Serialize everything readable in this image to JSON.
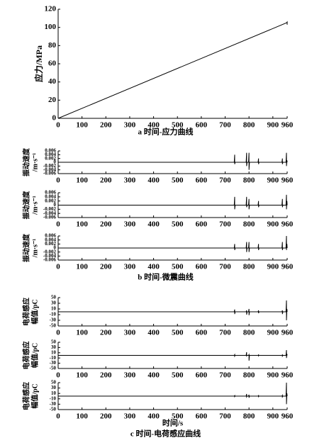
{
  "chart_data": [
    {
      "type": "line",
      "ylabel": [
        "应力/MPa"
      ],
      "caption": "a 时间-应力曲线",
      "x": [
        0,
        957,
        960,
        960
      ],
      "values": [
        0,
        105,
        106,
        103
      ],
      "color": "#000000",
      "xlim": [
        0,
        960
      ],
      "xticks": [
        0,
        100,
        200,
        300,
        400,
        500,
        600,
        700,
        800,
        900,
        960
      ],
      "ylim": [
        0,
        120
      ],
      "yticks": [
        0,
        20,
        40,
        60,
        80,
        100,
        120
      ]
    },
    {
      "type": "line",
      "ylabel": [
        "振动速度",
        "/m·s⁻¹"
      ],
      "x": [
        0,
        100,
        200,
        300,
        400,
        500,
        600,
        700,
        738,
        740,
        740,
        742,
        788,
        790,
        790,
        792,
        798,
        800,
        800,
        802,
        838,
        840,
        840,
        842,
        938,
        940,
        940,
        942,
        955,
        957,
        957,
        959,
        960
      ],
      "values": [
        0,
        0,
        0,
        0,
        0,
        0,
        0,
        0,
        0,
        0.004,
        -0.001,
        0,
        0,
        0.005,
        -0.002,
        0,
        0,
        0.005,
        -0.004,
        0,
        0,
        0.002,
        -0.001,
        0,
        0,
        0.002,
        -0.001,
        0,
        0,
        0.005,
        -0.002,
        0.001,
        0
      ],
      "color": "#000000",
      "xlim": [
        0,
        960
      ],
      "xticks": [
        0,
        100,
        200,
        300,
        400,
        500,
        600,
        700,
        800,
        900,
        960
      ],
      "ylim": [
        -0.006,
        0.006
      ],
      "yticks": [
        -0.006,
        -0.004,
        -0.002,
        0,
        0.002,
        0.004,
        0.006
      ]
    },
    {
      "type": "line",
      "ylabel": [
        "振动速度",
        "/m·s⁻¹"
      ],
      "x": [
        0,
        100,
        200,
        300,
        400,
        500,
        600,
        700,
        738,
        740,
        740,
        742,
        788,
        790,
        790,
        792,
        798,
        800,
        800,
        802,
        838,
        840,
        840,
        842,
        938,
        940,
        940,
        942,
        955,
        957,
        957,
        959,
        960
      ],
      "values": [
        0,
        0,
        0,
        0,
        0,
        0,
        0,
        0,
        0,
        0.004,
        -0.002,
        0,
        0,
        0.004,
        -0.001,
        0,
        0,
        0.003,
        -0.002,
        0,
        0,
        0.002,
        -0.001,
        0,
        0,
        0.003,
        -0.001,
        0,
        0,
        0.005,
        -0.002,
        0.002,
        0
      ],
      "color": "#000000",
      "xlim": [
        0,
        960
      ],
      "xticks": [
        0,
        100,
        200,
        300,
        400,
        500,
        600,
        700,
        800,
        900,
        960
      ],
      "ylim": [
        -0.006,
        0.006
      ],
      "yticks": [
        -0.006,
        -0.004,
        -0.002,
        0,
        0.002,
        0.004,
        0.006
      ]
    },
    {
      "type": "line",
      "ylabel": [
        "振动速度",
        "/m·s⁻¹"
      ],
      "caption": "b 时间-微震曲线",
      "x": [
        0,
        100,
        200,
        300,
        400,
        500,
        600,
        700,
        738,
        740,
        740,
        742,
        788,
        790,
        790,
        792,
        798,
        800,
        800,
        802,
        838,
        840,
        840,
        842,
        938,
        940,
        940,
        942,
        955,
        957,
        957,
        959,
        960
      ],
      "values": [
        0,
        0,
        0,
        0,
        0,
        0,
        0,
        0,
        0,
        0.002,
        -0.001,
        0,
        0,
        0.003,
        -0.002,
        0,
        0,
        0.003,
        -0.002,
        0,
        0,
        0.002,
        -0.001,
        0,
        0,
        0.003,
        -0.001,
        0,
        0,
        0.006,
        -0.001,
        0.002,
        0
      ],
      "color": "#000000",
      "xlim": [
        0,
        960
      ],
      "xticks": [
        0,
        100,
        200,
        300,
        400,
        500,
        600,
        700,
        800,
        900,
        960
      ],
      "ylim": [
        -0.006,
        0.006
      ],
      "yticks": [
        -0.006,
        -0.004,
        -0.002,
        0,
        0.002,
        0.004,
        0.006
      ]
    },
    {
      "type": "line",
      "ylabel": [
        "电荷感应",
        "幅值/pC"
      ],
      "x": [
        0,
        100,
        200,
        300,
        400,
        500,
        600,
        700,
        738,
        740,
        740,
        742,
        788,
        790,
        790,
        792,
        798,
        800,
        800,
        802,
        838,
        840,
        840,
        842,
        938,
        940,
        940,
        942,
        955,
        957,
        957,
        959,
        960
      ],
      "values": [
        0,
        0,
        0,
        0,
        0,
        0,
        0,
        0,
        0,
        8,
        -8,
        0,
        0,
        5,
        -10,
        0,
        0,
        10,
        -12,
        0,
        0,
        5,
        -5,
        0,
        0,
        5,
        -8,
        0,
        0,
        40,
        -30,
        10,
        0
      ],
      "color": "#000000",
      "xlim": [
        0,
        960
      ],
      "xticks": [
        0,
        100,
        200,
        300,
        400,
        500,
        600,
        700,
        800,
        900,
        960
      ],
      "ylim": [
        -50,
        50
      ],
      "yticks": [
        -50,
        -30,
        -10,
        10,
        30,
        50
      ]
    },
    {
      "type": "line",
      "ylabel": [
        "电荷感应",
        "幅值/pC"
      ],
      "x": [
        0,
        100,
        200,
        300,
        400,
        500,
        600,
        700,
        738,
        740,
        740,
        742,
        788,
        790,
        790,
        792,
        798,
        800,
        800,
        802,
        838,
        840,
        840,
        842,
        938,
        940,
        940,
        942,
        955,
        957,
        957,
        959,
        960
      ],
      "values": [
        0,
        0,
        0,
        0,
        0,
        0,
        0,
        0,
        0,
        3,
        -3,
        0,
        0,
        12,
        -2,
        0,
        0,
        3,
        -20,
        0,
        0,
        2,
        -2,
        0,
        0,
        2,
        -3,
        0,
        0,
        20,
        -10,
        5,
        0
      ],
      "color": "#000000",
      "xlim": [
        0,
        960
      ],
      "xticks": [
        0,
        100,
        200,
        300,
        400,
        500,
        600,
        700,
        800,
        900,
        960
      ],
      "ylim": [
        -50,
        50
      ],
      "yticks": [
        -50,
        -30,
        -10,
        10,
        30,
        50
      ]
    },
    {
      "type": "line",
      "ylabel": [
        "电荷感应",
        "幅值/pC"
      ],
      "xlabel": "时间/s",
      "caption": "c 时间-电荷感应曲线",
      "x": [
        0,
        100,
        200,
        300,
        400,
        500,
        600,
        700,
        738,
        740,
        740,
        742,
        788,
        790,
        790,
        792,
        798,
        800,
        800,
        802,
        838,
        840,
        840,
        842,
        938,
        940,
        940,
        942,
        955,
        957,
        957,
        959,
        960
      ],
      "values": [
        0,
        0,
        0,
        0,
        0,
        0,
        0,
        0,
        0,
        2,
        -2,
        0,
        0,
        8,
        -3,
        0,
        0,
        5,
        -6,
        0,
        0,
        2,
        -2,
        0,
        0,
        3,
        -3,
        0,
        0,
        50,
        -30,
        10,
        0
      ],
      "color": "#000000",
      "xlim": [
        0,
        960
      ],
      "xticks": [
        0,
        100,
        200,
        300,
        400,
        500,
        600,
        700,
        800,
        900,
        960
      ],
      "ylim": [
        -50,
        50
      ],
      "yticks": [
        -50,
        -30,
        -10,
        10,
        30,
        50
      ]
    }
  ]
}
